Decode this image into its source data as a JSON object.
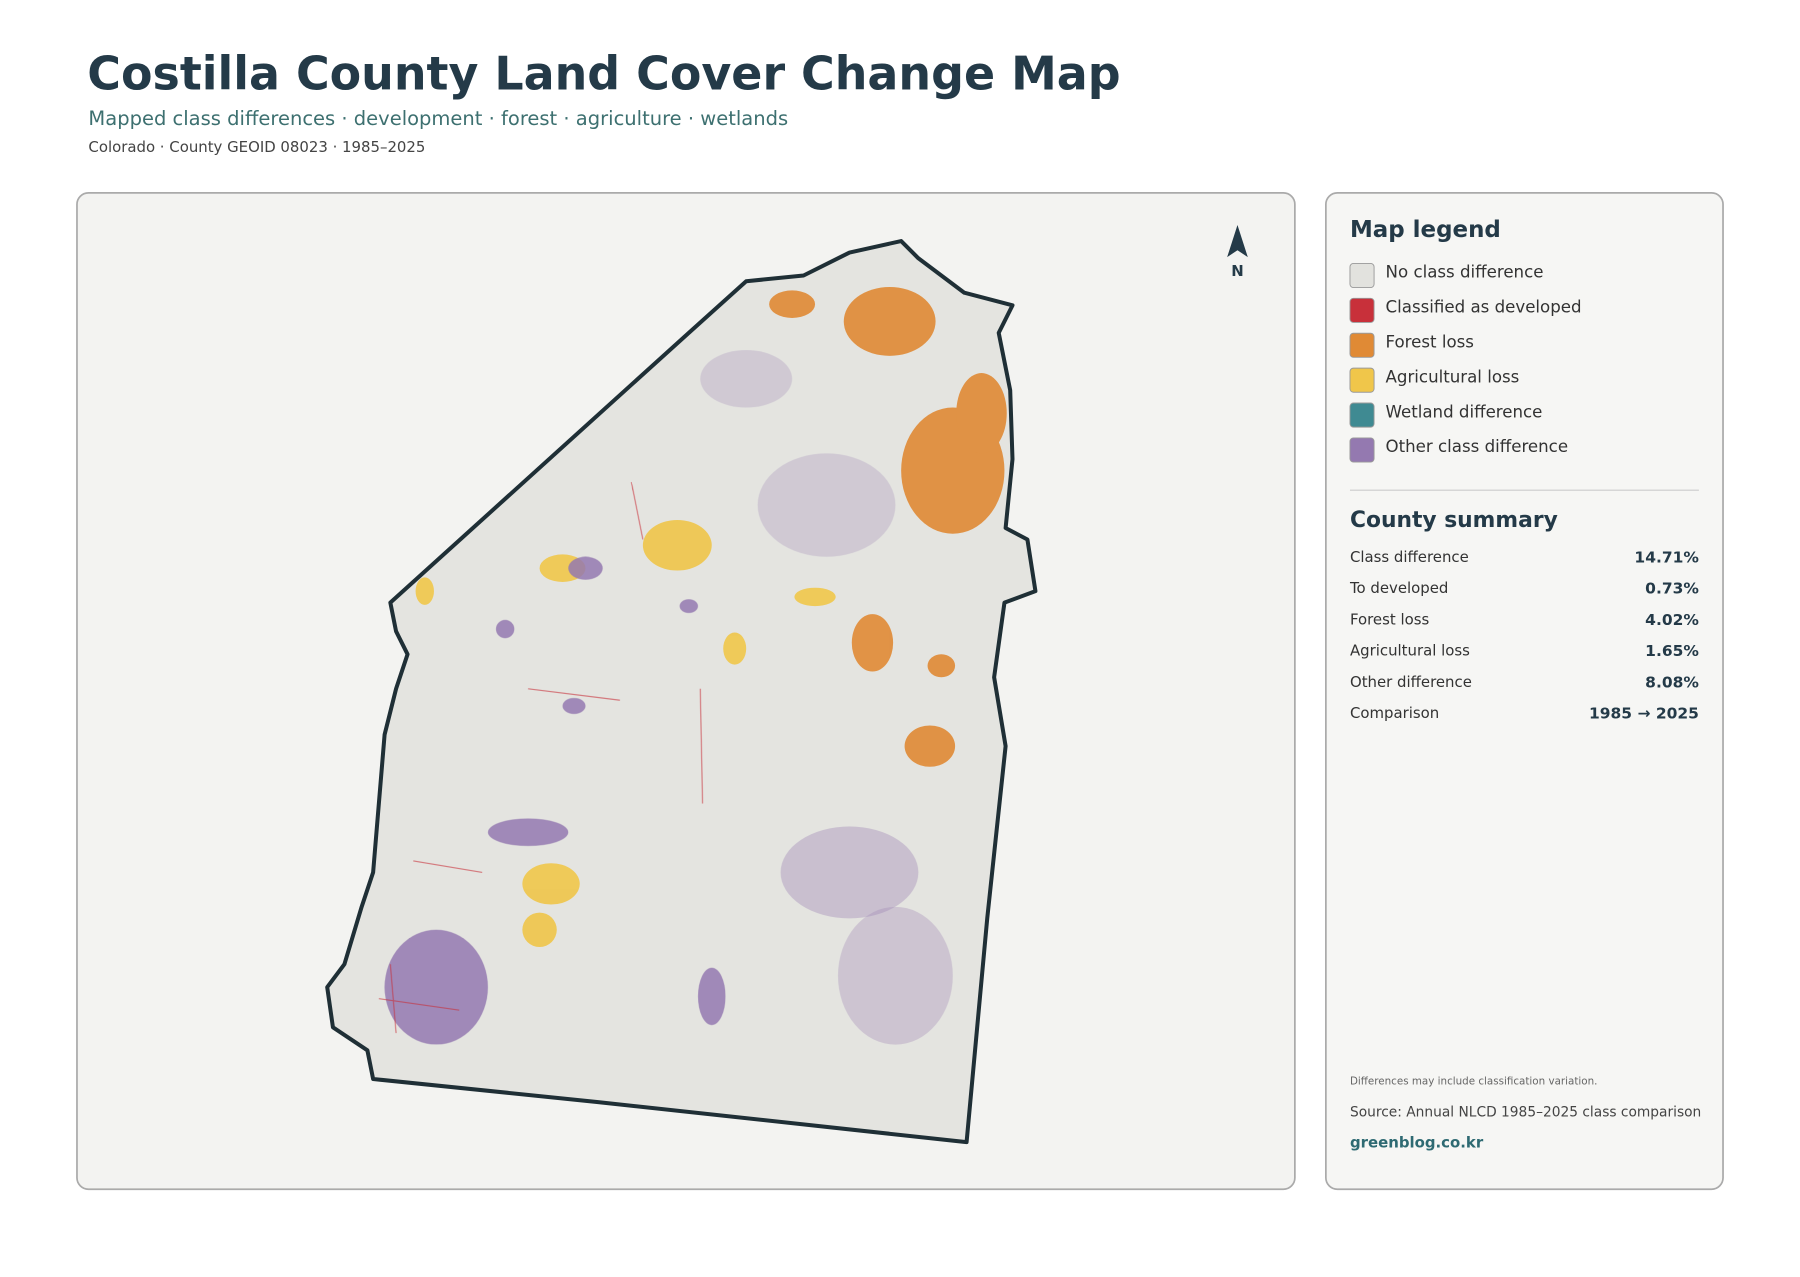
{
  "header": {
    "title": "Costilla County Land Cover Change Map",
    "subtitle": "Mapped class differences · development · forest · agriculture · wetlands",
    "meta": "Colorado · County GEOID 08023 · 1985–2025"
  },
  "map": {
    "north_label": "N"
  },
  "legend": {
    "title": "Map legend",
    "items": [
      {
        "label": "No class difference",
        "color": "#e2e2de"
      },
      {
        "label": "Classified as developed",
        "color": "#c8303a"
      },
      {
        "label": "Forest loss",
        "color": "#e08a35"
      },
      {
        "label": "Agricultural loss",
        "color": "#f0c64a"
      },
      {
        "label": "Wetland difference",
        "color": "#3f8a92"
      },
      {
        "label": "Other class difference",
        "color": "#9479b0"
      }
    ]
  },
  "summary": {
    "title": "County summary",
    "rows": [
      [
        "Class difference",
        "14.71%"
      ],
      [
        "To developed",
        "0.73%"
      ],
      [
        "Forest loss",
        "4.02%"
      ],
      [
        "Agricultural loss",
        "1.65%"
      ],
      [
        "Other difference",
        "8.08%"
      ],
      [
        "Comparison",
        "1985 → 2025"
      ]
    ]
  },
  "notes": {
    "caveat": "Differences may include classification variation.",
    "source": "Source: Annual NLCD 1985–2025 class comparison",
    "site": "greenblog.co.kr"
  }
}
